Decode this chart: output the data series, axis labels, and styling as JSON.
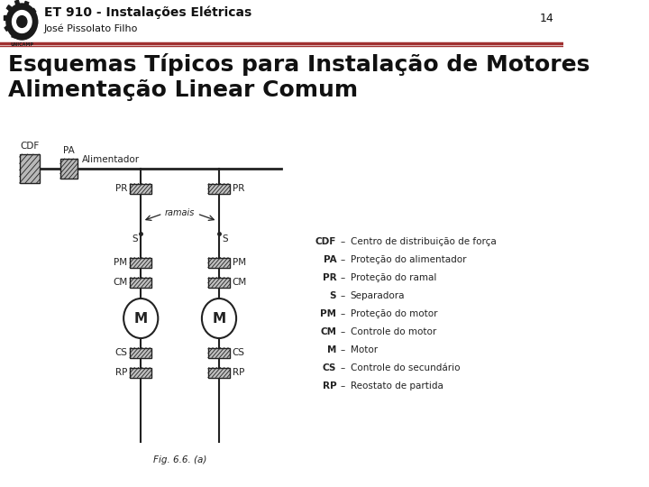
{
  "bg_color": "#ffffff",
  "header_line_color": "#a03030",
  "header_title": "ET 910 - Instalações Elétricas",
  "header_subtitle": "José Pissolato Filho",
  "page_number": "14",
  "slide_title_line1": "Esquemas Típicos para Instalação de Motores",
  "slide_title_line2": "Alimentação Linear Comum",
  "fig_caption": "Fig. 6.6. (a)",
  "legend": [
    [
      "CDF",
      "Centro de distribuição de força"
    ],
    [
      "PA",
      "Proteção do alimentador"
    ],
    [
      "PR",
      "Proteção do ramal"
    ],
    [
      "S",
      "Separadora"
    ],
    [
      "PM",
      "Proteção do motor"
    ],
    [
      "CM",
      "Controle do motor"
    ],
    [
      "M",
      "Motor"
    ],
    [
      "CS",
      "Controle do secundário"
    ],
    [
      "RP",
      "Reostato de partida"
    ]
  ],
  "diagram_color": "#222222",
  "hatch_bg": "#bbbbbb",
  "text_color": "#111111",
  "header_title_size": 10,
  "header_subtitle_size": 8,
  "slide_title_size": 18,
  "legend_key_size": 7.5,
  "legend_val_size": 7.5,
  "fig_caption_size": 7.5
}
